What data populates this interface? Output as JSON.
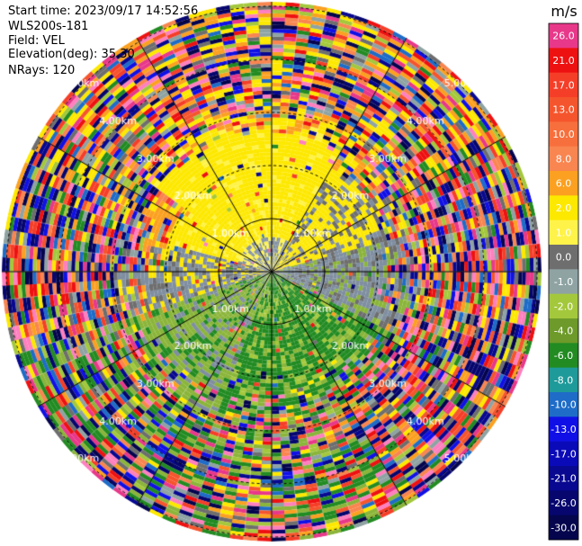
{
  "info": {
    "start_time": "Start time: 2023/09/17 14:52:56",
    "instrument": "WLS200s-181",
    "field": "Field: VEL",
    "elevation": "Elevation(deg): 35.30",
    "nrays": "NRays: 120"
  },
  "ppi": {
    "nrays": 120,
    "ring_labels": [
      "1.00km",
      "2.00km",
      "3.00km",
      "4.00km",
      "5.00km"
    ]
  },
  "colorbar": {
    "unit": "m/s",
    "levels": [
      {
        "label": "26.0",
        "color": "#e8388a"
      },
      {
        "label": "21.0",
        "color": "#ee1111"
      },
      {
        "label": "17.0",
        "color": "#f53e28"
      },
      {
        "label": "13.0",
        "color": "#f5552d"
      },
      {
        "label": "10.0",
        "color": "#f76f3c"
      },
      {
        "label": "8.0",
        "color": "#f98550"
      },
      {
        "label": "6.0",
        "color": "#fba020"
      },
      {
        "label": "2.0",
        "color": "#fde800"
      },
      {
        "label": "1.0",
        "color": "#fff34a"
      },
      {
        "label": "0.0",
        "color": "#6e6e6e"
      },
      {
        "label": "-1.0",
        "color": "#8fa3a3"
      },
      {
        "label": "-2.0",
        "color": "#a4c83c"
      },
      {
        "label": "-4.0",
        "color": "#6d9a2a"
      },
      {
        "label": "-6.0",
        "color": "#228b22"
      },
      {
        "label": "-8.0",
        "color": "#1e9a9a"
      },
      {
        "label": "-10.0",
        "color": "#1e6cc8"
      },
      {
        "label": "-13.0",
        "color": "#1010e6"
      },
      {
        "label": "-17.0",
        "color": "#0a0ab8"
      },
      {
        "label": "-21.0",
        "color": "#080890"
      },
      {
        "label": "-26.0",
        "color": "#06066e"
      },
      {
        "label": "-30.0",
        "color": "#05054e"
      }
    ]
  }
}
